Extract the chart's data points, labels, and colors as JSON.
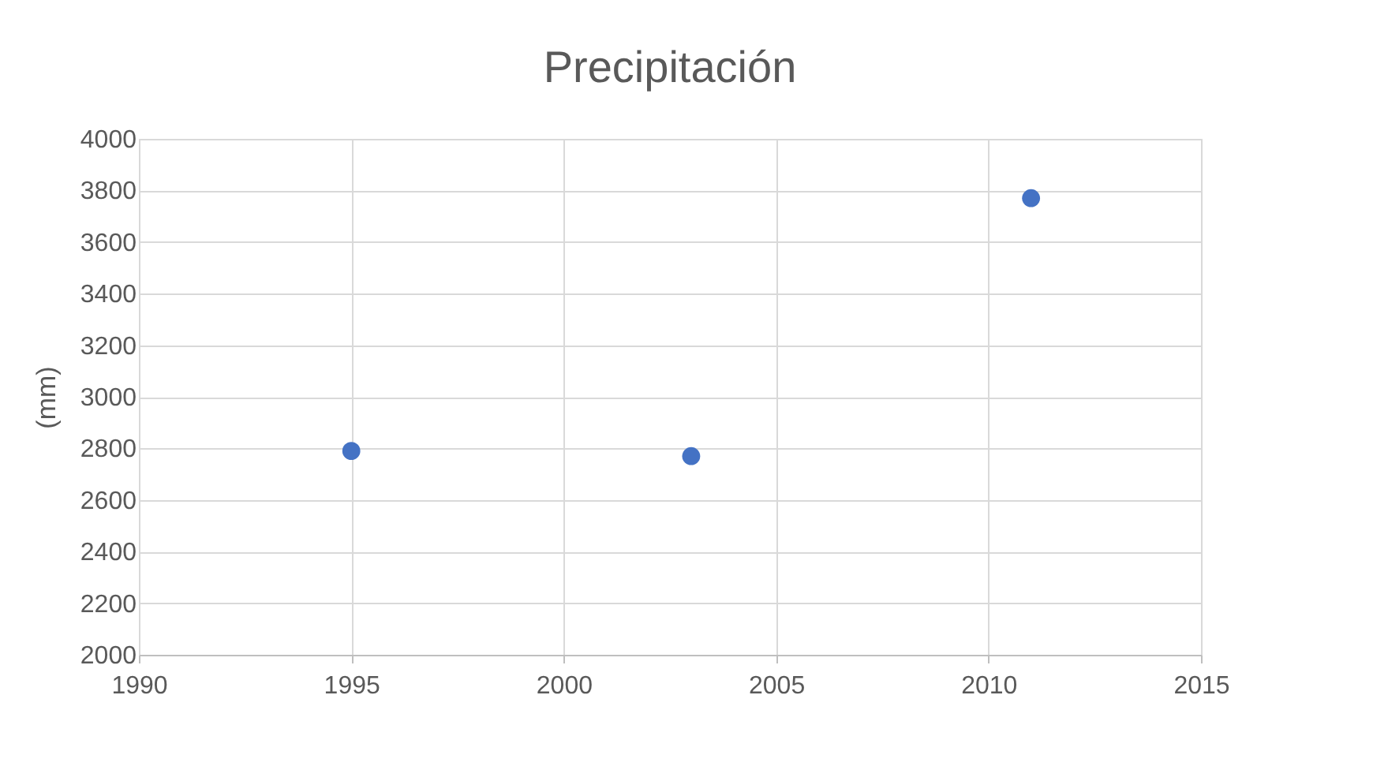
{
  "chart_data": {
    "type": "scatter",
    "title": "Precipitación",
    "ylabel": "(mm)",
    "x": [
      1995,
      2003,
      2011
    ],
    "series": [
      {
        "color": "#4472c4",
        "values": [
          2790,
          2770,
          3770
        ]
      }
    ],
    "xlim": [
      1990,
      2015
    ],
    "xticks": [
      1990,
      1995,
      2000,
      2005,
      2010,
      2015
    ],
    "ylim": [
      2000,
      4000
    ],
    "yticks": [
      2000,
      2200,
      2400,
      2600,
      2800,
      3000,
      3200,
      3400,
      3600,
      3800,
      4000
    ],
    "grid": true,
    "marker": "circle",
    "legend": false
  }
}
